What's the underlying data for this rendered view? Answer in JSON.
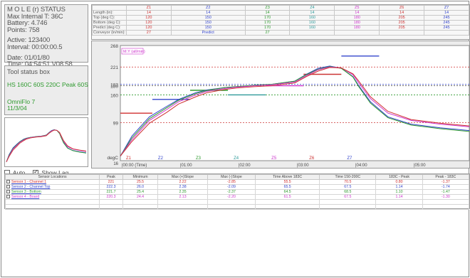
{
  "status": {
    "title": "M O L E (r) STATUS",
    "max_internal": "Max Internal T: 36C",
    "battery": "Battery: 4.746",
    "points": "Points: 758",
    "active": "Active: 123400",
    "interval": "Interval: 00:00:00.5",
    "date": "Date: 01/01/80",
    "time": "Time: 04:54:51  V08.58"
  },
  "toolbox": {
    "title": "Tool status box",
    "recipe": "HS 160C 60S 220C Peak 60S",
    "device": "OmniFlo 7",
    "date": "11/3/04"
  },
  "zones": {
    "columns": [
      "Z1",
      "Z2",
      "Z3",
      "Z4",
      "Z5",
      "Z6",
      "Z7"
    ],
    "column_colors": [
      "#d03030",
      "#3344cc",
      "#2e9a2e",
      "#2e9a9a",
      "#cc33cc",
      "#cc3333",
      "#3344cc"
    ],
    "rows": [
      {
        "label": "Length (in):",
        "values": [
          "14",
          "14",
          "14",
          "14",
          "14",
          "14",
          "14"
        ]
      },
      {
        "label": "Top (deg C):",
        "values": [
          "120",
          "150",
          "170",
          "160",
          "180",
          "205",
          "245"
        ]
      },
      {
        "label": "Bottom (deg C):",
        "values": [
          "120",
          "150",
          "170",
          "160",
          "180",
          "205",
          "245"
        ]
      },
      {
        "label": "Predict (deg C):",
        "values": [
          "120",
          "150",
          "170",
          "160",
          "180",
          "205",
          "245"
        ]
      },
      {
        "label": "Conveyor (in/min):",
        "values": [
          "27",
          "Predict",
          "27",
          "",
          "",
          "",
          ""
        ]
      }
    ]
  },
  "chart": {
    "y_ticks": [
      "268",
      "221",
      "183",
      "180",
      "160",
      "99",
      "degC"
    ],
    "y_ticks_bottom": "16",
    "x_ticks": [
      "|00:00 (Time)",
      "|01:00",
      "|02:00",
      "|03:00",
      "|04:00",
      "|05:00"
    ],
    "zone_labels": [
      "Z1",
      "Z2",
      "Z3",
      "Z4",
      "Z5",
      "Z6",
      "Z7"
    ],
    "tag": "M.Y (all/min)"
  },
  "chart_data": {
    "type": "line",
    "title": "",
    "xlabel": "Time",
    "ylabel": "degC",
    "ylim": [
      16,
      268
    ],
    "xlim": [
      0,
      6
    ],
    "series": [
      {
        "color": "#3344cc",
        "x": [
          0,
          0.2,
          0.5,
          0.8,
          1.0,
          1.3,
          1.5,
          1.8,
          2.0,
          2.3,
          2.6,
          3.0,
          3.2,
          3.4,
          3.6,
          3.8,
          4.0,
          4.1,
          4.3,
          4.6,
          5.0,
          5.5,
          6.0
        ],
        "y": [
          26,
          70,
          112,
          135,
          150,
          165,
          171,
          176,
          178,
          181,
          183,
          190,
          205,
          218,
          223,
          218,
          200,
          180,
          145,
          112,
          96,
          88,
          82
        ]
      },
      {
        "color": "#2e9a2e",
        "x": [
          0,
          0.2,
          0.5,
          0.8,
          1.0,
          1.3,
          1.5,
          1.8,
          2.0,
          2.3,
          2.6,
          3.0,
          3.2,
          3.4,
          3.6,
          3.8,
          4.0,
          4.1,
          4.3,
          4.6,
          5.0,
          5.5,
          6.0
        ],
        "y": [
          26,
          66,
          108,
          132,
          148,
          163,
          170,
          176,
          178,
          181,
          183,
          190,
          204,
          216,
          222,
          218,
          199,
          178,
          142,
          110,
          94,
          86,
          80
        ]
      },
      {
        "color": "#cc33cc",
        "x": [
          0,
          0.2,
          0.5,
          0.8,
          1.0,
          1.3,
          1.5,
          1.8,
          2.0,
          2.3,
          2.6,
          3.0,
          3.2,
          3.4,
          3.6,
          3.8,
          4.0,
          4.1,
          4.3,
          4.6,
          5.0,
          5.5,
          6.0
        ],
        "y": [
          26,
          62,
          104,
          128,
          145,
          160,
          168,
          174,
          177,
          180,
          182,
          188,
          202,
          215,
          221,
          219,
          204,
          186,
          152,
          120,
          104,
          96,
          90
        ]
      },
      {
        "color": "#d03030",
        "x": [
          0,
          0.2,
          0.5,
          0.8,
          1.0,
          1.3,
          1.5,
          1.8,
          2.0,
          2.3,
          2.6,
          3.0,
          3.2,
          3.4,
          3.6,
          3.8,
          4.0,
          4.1,
          4.3,
          4.6,
          5.0,
          5.5,
          6.0
        ],
        "y": [
          26,
          58,
          98,
          122,
          140,
          156,
          165,
          172,
          175,
          178,
          180,
          186,
          200,
          212,
          220,
          219,
          206,
          190,
          156,
          124,
          106,
          98,
          92
        ]
      }
    ],
    "reference_lines": [
      {
        "y": 221,
        "color": "#d03030"
      },
      {
        "y": 183,
        "color": "#3344cc"
      },
      {
        "y": 180,
        "color": "#555555"
      },
      {
        "y": 160,
        "color": "#2e9a2e"
      },
      {
        "y": 99,
        "color": "#cc3333"
      }
    ],
    "zone_setpoints": [
      {
        "x0": 0,
        "x1": 0.55,
        "y": 120,
        "color": "#d03030"
      },
      {
        "x0": 0.55,
        "x1": 1.2,
        "y": 150,
        "color": "#3344cc"
      },
      {
        "x0": 1.2,
        "x1": 1.85,
        "y": 170,
        "color": "#2e9a2e"
      },
      {
        "x0": 1.85,
        "x1": 2.5,
        "y": 160,
        "color": "#2e9a9a"
      },
      {
        "x0": 2.5,
        "x1": 3.15,
        "y": 180,
        "color": "#cc33cc"
      },
      {
        "x0": 3.15,
        "x1": 3.8,
        "y": 205,
        "color": "#cc3333"
      },
      {
        "x0": 3.8,
        "x1": 4.45,
        "y": 245,
        "color": "#3344cc"
      }
    ]
  },
  "controls": {
    "auto_label": "Auto",
    "auto_checked": false,
    "show_lag_label": "Show Lag",
    "show_lag_checked": true
  },
  "sensors": {
    "headers": [
      "Sensor Locations",
      "Peak",
      "Minimum",
      "Max (+)Slope",
      "Max (-)Slope",
      "Time Above 183C",
      "Time 150-200C",
      "183C - Peak",
      "Peak - 183C"
    ],
    "rows": [
      {
        "name": "Sensor 1 - Channel 1",
        "color": "#d03030",
        "values": [
          "221",
          "25.5",
          "2.22",
          "-2.85",
          "55.5",
          "70.5",
          "0.80",
          "-1.37"
        ]
      },
      {
        "name": "Sensor 2 - Channel Top",
        "color": "#3344cc",
        "values": [
          "222.3",
          "26.0",
          "2.38",
          "-2.09",
          "65.5",
          "67.5",
          "1.14",
          "-1.74"
        ]
      },
      {
        "name": "Sensor 3 - Bottom",
        "color": "#2e9a2e",
        "values": [
          "221.7",
          "25.4",
          "2.35",
          "-2.37",
          "64.5",
          "68.5",
          "1.10",
          "-1.47"
        ]
      },
      {
        "name": "Sensor 4 - Board",
        "color": "#cc33cc",
        "values": [
          "220.3",
          "24.4",
          "2.13",
          "-2.20",
          "61.5",
          "67.5",
          "1.14",
          "-1.30"
        ]
      }
    ]
  }
}
